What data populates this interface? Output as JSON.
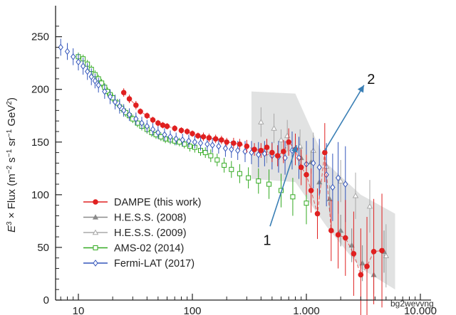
{
  "chart_data": {
    "type": "scatter",
    "title": "",
    "ylabel_main": "E",
    "ylabel_exp1": "3",
    "ylabel_rest": " × Flux (m",
    "ylabel_exp2": "−2",
    "ylabel_s": " s",
    "ylabel_exp3": "−1",
    "ylabel_sr": " sr",
    "ylabel_exp4": "−1",
    "ylabel_gev": " GeV",
    "ylabel_exp5": "2",
    "ylabel_close": ")",
    "xlabel": "",
    "x_scale": "log",
    "xlim": [
      7,
      10000
    ],
    "ylim": [
      0,
      270
    ],
    "x_ticks": [
      10,
      100,
      1000,
      10000
    ],
    "x_tick_labels": [
      "10",
      "100",
      "1.000",
      "10.000"
    ],
    "y_ticks": [
      0,
      50,
      100,
      150,
      200,
      250
    ],
    "y_tick_labels": [
      "0",
      "50",
      "100",
      "150",
      "200",
      "250"
    ],
    "band": {
      "upper": [
        [
          330,
          198
        ],
        [
          800,
          196
        ],
        [
          1500,
          130
        ],
        [
          3000,
          100
        ],
        [
          6000,
          82
        ]
      ],
      "lower": [
        [
          330,
          115
        ],
        [
          800,
          112
        ],
        [
          1500,
          70
        ],
        [
          3000,
          30
        ],
        [
          6000,
          10
        ]
      ]
    },
    "series": [
      {
        "name": "DAMPE (this work)",
        "color": "#e02020",
        "marker": "circle",
        "points": [
          [
            25,
            197,
            4
          ],
          [
            28,
            191,
            4
          ],
          [
            32,
            185,
            4
          ],
          [
            35,
            179,
            3
          ],
          [
            40,
            175,
            3
          ],
          [
            45,
            171,
            3
          ],
          [
            50,
            168,
            3
          ],
          [
            55,
            166,
            3
          ],
          [
            60,
            165,
            3
          ],
          [
            70,
            163,
            3
          ],
          [
            80,
            161,
            3
          ],
          [
            90,
            160,
            3
          ],
          [
            100,
            158,
            3
          ],
          [
            112,
            156,
            3
          ],
          [
            125,
            155,
            4
          ],
          [
            140,
            154,
            4
          ],
          [
            160,
            153,
            4
          ],
          [
            180,
            152,
            4
          ],
          [
            200,
            150,
            4
          ],
          [
            230,
            149,
            5
          ],
          [
            260,
            148,
            5
          ],
          [
            300,
            146,
            6
          ],
          [
            350,
            143,
            6
          ],
          [
            400,
            142,
            7
          ],
          [
            450,
            145,
            8
          ],
          [
            500,
            140,
            9
          ],
          [
            560,
            137,
            10
          ],
          [
            630,
            141,
            11
          ],
          [
            700,
            150,
            13
          ],
          [
            800,
            143,
            15
          ],
          [
            900,
            126,
            17
          ],
          [
            1000,
            119,
            19
          ],
          [
            1100,
            104,
            21
          ],
          [
            1250,
            82,
            24
          ],
          [
            1450,
            140,
            28
          ],
          [
            1650,
            66,
            29
          ],
          [
            1900,
            62,
            32
          ],
          [
            2200,
            59,
            36
          ],
          [
            2600,
            44,
            40
          ],
          [
            3000,
            24,
            44
          ],
          [
            3400,
            32,
            47
          ],
          [
            3900,
            46,
            50
          ],
          [
            4600,
            47,
            54
          ]
        ]
      },
      {
        "name": "H.E.S.S. (2008)",
        "color": "#8a8a8a",
        "marker": "triangle-filled",
        "points": [
          [
            900,
            135,
            10
          ],
          [
            1100,
            131,
            11
          ],
          [
            1300,
            112,
            12
          ],
          [
            1600,
            96,
            13
          ],
          [
            2000,
            66,
            15
          ],
          [
            2500,
            52,
            16
          ],
          [
            3100,
            35,
            17
          ],
          [
            3900,
            24,
            18
          ],
          [
            4800,
            46,
            20
          ]
        ]
      },
      {
        "name": "H.E.S.S. (2009)",
        "color": "#a8a8a8",
        "marker": "triangle-open",
        "points": [
          [
            400,
            169,
            14
          ],
          [
            520,
            163,
            14
          ],
          [
            680,
            156,
            15
          ],
          [
            880,
            146,
            16
          ],
          [
            1150,
            142,
            17
          ],
          [
            1500,
            127,
            19
          ],
          [
            2000,
            113,
            20
          ],
          [
            2700,
            99,
            22
          ],
          [
            3600,
            89,
            25
          ],
          [
            5000,
            42,
            30
          ],
          [
            450,
            140,
            10
          ],
          [
            600,
            152,
            10
          ]
        ]
      },
      {
        "name": "AMS-02 (2014)",
        "color": "#33aa22",
        "marker": "square-open",
        "points": [
          [
            10,
            231,
            4
          ],
          [
            11,
            229,
            4
          ],
          [
            12,
            224,
            4
          ],
          [
            13,
            219,
            4
          ],
          [
            14,
            214,
            4
          ],
          [
            15,
            210,
            4
          ],
          [
            16,
            206,
            4
          ],
          [
            17,
            202,
            4
          ],
          [
            18,
            198,
            4
          ],
          [
            19,
            195,
            4
          ],
          [
            20,
            192,
            4
          ],
          [
            22,
            187,
            4
          ],
          [
            24,
            182,
            4
          ],
          [
            26,
            178,
            4
          ],
          [
            28,
            175,
            4
          ],
          [
            30,
            172,
            4
          ],
          [
            33,
            168,
            4
          ],
          [
            36,
            165,
            4
          ],
          [
            40,
            162,
            4
          ],
          [
            44,
            159,
            4
          ],
          [
            48,
            157,
            4
          ],
          [
            53,
            155,
            4
          ],
          [
            58,
            153,
            4
          ],
          [
            64,
            152,
            4
          ],
          [
            70,
            151,
            4
          ],
          [
            77,
            150,
            4
          ],
          [
            85,
            148,
            4
          ],
          [
            95,
            146,
            5
          ],
          [
            105,
            145,
            5
          ],
          [
            118,
            142,
            5
          ],
          [
            130,
            140,
            5
          ],
          [
            145,
            137,
            6
          ],
          [
            165,
            133,
            6
          ],
          [
            190,
            128,
            7
          ],
          [
            220,
            124,
            8
          ],
          [
            260,
            120,
            9
          ],
          [
            310,
            116,
            10
          ],
          [
            380,
            113,
            12
          ],
          [
            470,
            110,
            14
          ],
          [
            600,
            104,
            16
          ],
          [
            760,
            98,
            18
          ],
          [
            1000,
            92,
            20
          ]
        ]
      },
      {
        "name": "Fermi-LAT (2017)",
        "color": "#3355bb",
        "marker": "diamond-open",
        "points": [
          [
            7,
            240,
            8
          ],
          [
            8,
            236,
            8
          ],
          [
            9,
            231,
            8
          ],
          [
            10,
            226,
            8
          ],
          [
            11,
            222,
            8
          ],
          [
            12,
            217,
            8
          ],
          [
            13,
            212,
            8
          ],
          [
            14,
            208,
            7
          ],
          [
            15,
            204,
            7
          ],
          [
            17,
            198,
            7
          ],
          [
            19,
            193,
            7
          ],
          [
            21,
            188,
            7
          ],
          [
            23,
            184,
            7
          ],
          [
            25,
            180,
            6
          ],
          [
            28,
            176,
            6
          ],
          [
            32,
            172,
            6
          ],
          [
            36,
            168,
            6
          ],
          [
            40,
            165,
            6
          ],
          [
            45,
            162,
            6
          ],
          [
            50,
            159,
            6
          ],
          [
            57,
            157,
            6
          ],
          [
            64,
            155,
            6
          ],
          [
            72,
            153,
            6
          ],
          [
            82,
            152,
            6
          ],
          [
            93,
            151,
            6
          ],
          [
            105,
            150,
            6
          ],
          [
            118,
            149,
            7
          ],
          [
            135,
            148,
            7
          ],
          [
            150,
            147,
            7
          ],
          [
            170,
            146,
            7
          ],
          [
            195,
            144,
            8
          ],
          [
            220,
            143,
            8
          ],
          [
            250,
            142,
            9
          ],
          [
            290,
            141,
            10
          ],
          [
            330,
            140,
            11
          ],
          [
            380,
            138,
            12
          ],
          [
            430,
            139,
            12
          ],
          [
            500,
            137,
            13
          ],
          [
            570,
            136,
            15
          ],
          [
            650,
            135,
            16
          ],
          [
            750,
            142,
            18
          ],
          [
            860,
            135,
            20
          ],
          [
            1000,
            129,
            22
          ],
          [
            1150,
            130,
            24
          ],
          [
            1300,
            126,
            27
          ],
          [
            1500,
            119,
            30
          ],
          [
            1700,
            107,
            32
          ],
          [
            1900,
            116,
            34
          ],
          [
            2200,
            110,
            36
          ]
        ]
      }
    ],
    "legend_location": "lower-left",
    "annotations": [
      {
        "label": "1",
        "from": [
          480,
          70
        ],
        "to": [
          820,
          147
        ]
      },
      {
        "label": "2",
        "from": [
          1450,
          142
        ],
        "to": [
          3200,
          204
        ]
      }
    ],
    "watermark": "bg2wevvng"
  }
}
